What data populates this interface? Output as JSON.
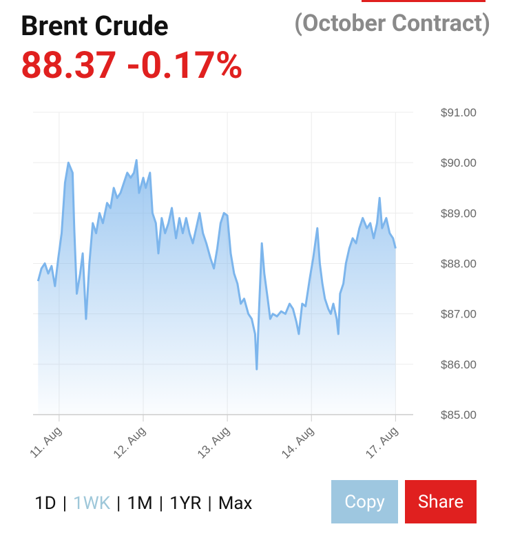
{
  "header": {
    "title": "Brent Crude",
    "price": "88.37",
    "change": "-0.17%",
    "contract": "(October Contract)"
  },
  "chart_data": {
    "type": "area",
    "x": [
      -0.25,
      -0.21,
      -0.17,
      -0.13,
      -0.09,
      -0.05,
      -0.01,
      0.03,
      0.07,
      0.11,
      0.16,
      0.18,
      0.21,
      0.25,
      0.28,
      0.32,
      0.36,
      0.4,
      0.44,
      0.48,
      0.52,
      0.57,
      0.61,
      0.65,
      0.69,
      0.73,
      0.77,
      0.81,
      0.85,
      0.89,
      0.92,
      0.95,
      1.0,
      1.03,
      1.08,
      1.11,
      1.15,
      1.18,
      1.22,
      1.26,
      1.3,
      1.34,
      1.39,
      1.43,
      1.47,
      1.51,
      1.55,
      1.59,
      1.63,
      1.67,
      1.71,
      1.75,
      1.8,
      1.84,
      1.88,
      1.92,
      1.96,
      2.0,
      2.04,
      2.08,
      2.12,
      2.16,
      2.2,
      2.25,
      2.29,
      2.33,
      2.35,
      2.38,
      2.41,
      2.44,
      2.48,
      2.51,
      2.54,
      2.59,
      2.64,
      2.69,
      2.74,
      2.78,
      2.82,
      2.85,
      2.89,
      2.93,
      2.98,
      3.02,
      3.07,
      3.1,
      3.13,
      3.16,
      3.2,
      3.23,
      3.26,
      3.3,
      3.32,
      3.34,
      3.38,
      3.41,
      3.45,
      3.49,
      3.53,
      3.57,
      3.61,
      3.66,
      3.7,
      3.74,
      3.78,
      3.81,
      3.84,
      3.89,
      3.93,
      3.97,
      4.0
    ],
    "values": [
      87.65,
      87.9,
      88.0,
      87.8,
      87.95,
      87.55,
      88.1,
      88.6,
      89.6,
      90.0,
      89.8,
      88.7,
      87.4,
      87.8,
      88.2,
      86.9,
      88.0,
      88.8,
      88.6,
      89.0,
      88.8,
      89.2,
      89.1,
      89.5,
      89.3,
      89.4,
      89.6,
      89.8,
      89.7,
      89.8,
      90.05,
      89.4,
      89.7,
      89.5,
      89.8,
      89.0,
      88.8,
      88.2,
      88.9,
      88.6,
      88.8,
      89.1,
      88.5,
      88.9,
      88.6,
      88.9,
      88.6,
      88.4,
      88.7,
      89.0,
      88.6,
      88.4,
      88.1,
      87.9,
      88.3,
      88.8,
      89.0,
      88.95,
      88.2,
      87.8,
      87.6,
      87.2,
      87.3,
      87.0,
      86.9,
      86.6,
      85.9,
      87.2,
      88.4,
      87.8,
      87.3,
      86.9,
      87.0,
      86.95,
      87.05,
      87.0,
      87.2,
      87.1,
      86.85,
      86.6,
      87.2,
      87.15,
      87.7,
      88.1,
      88.7,
      88.0,
      87.6,
      87.3,
      87.1,
      87.0,
      87.2,
      86.9,
      86.6,
      87.4,
      87.6,
      88.0,
      88.3,
      88.5,
      88.4,
      88.7,
      88.9,
      88.7,
      88.8,
      88.5,
      88.8,
      89.3,
      88.7,
      88.9,
      88.6,
      88.5,
      88.3
    ],
    "color": "#7cb5ec",
    "xlim": [
      -0.31,
      4.21
    ],
    "xticks": [
      {
        "value": 0,
        "label": "11. Aug"
      },
      {
        "value": 1,
        "label": "12. Aug"
      },
      {
        "value": 2,
        "label": "13. Aug"
      },
      {
        "value": 3,
        "label": "14. Aug"
      },
      {
        "value": 4,
        "label": "17. Aug"
      }
    ],
    "ylim": [
      85,
      91
    ],
    "yticks": [
      {
        "value": 85,
        "label": "$85.00"
      },
      {
        "value": 86,
        "label": "$86.00"
      },
      {
        "value": 87,
        "label": "$87.00"
      },
      {
        "value": 88,
        "label": "$88.00"
      },
      {
        "value": 89,
        "label": "$89.00"
      },
      {
        "value": 90,
        "label": "$90.00"
      },
      {
        "value": 91,
        "label": "$91.00"
      }
    ],
    "grid": true
  },
  "range_selector": {
    "options": [
      "1D",
      "1WK",
      "1M",
      "1YR",
      "Max"
    ],
    "active": 1
  },
  "buttons": [
    "Copy",
    "Share"
  ]
}
